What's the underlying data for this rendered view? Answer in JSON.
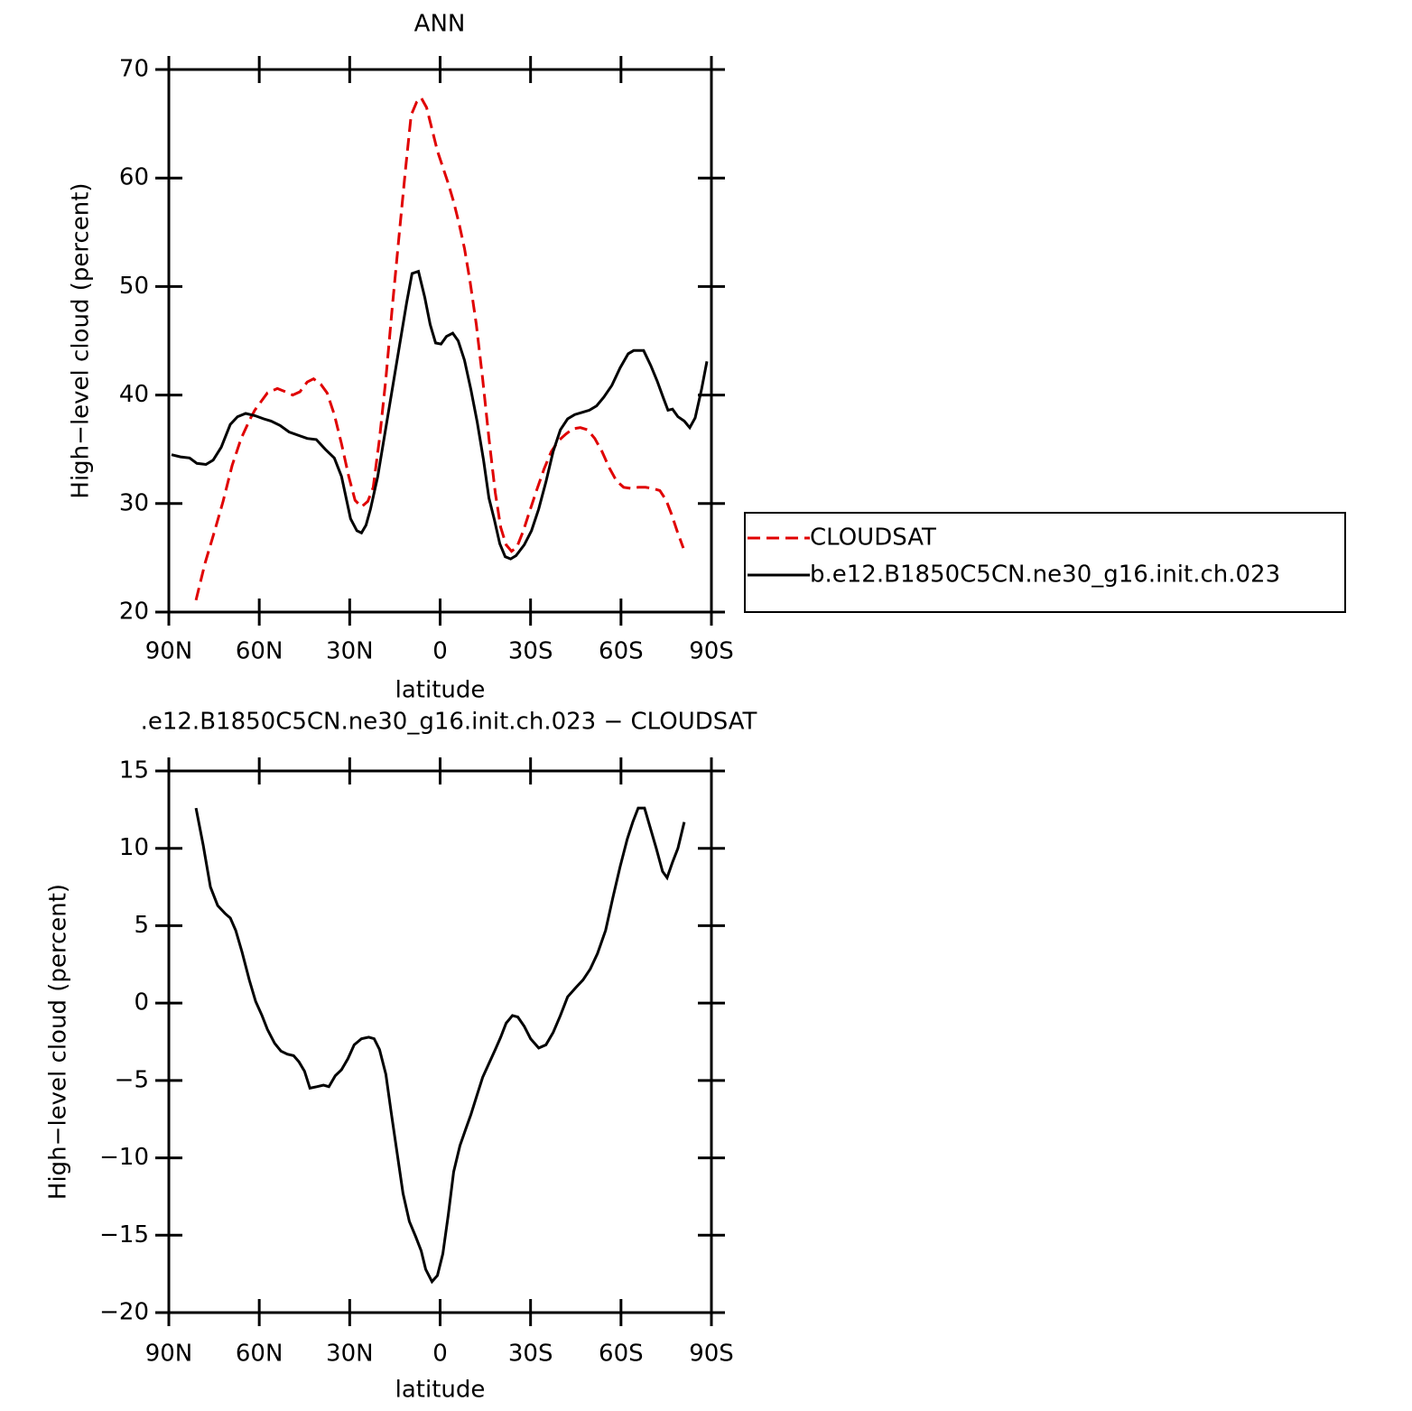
{
  "chart_data": [
    {
      "type": "line",
      "title": "ANN",
      "xlabel": "latitude",
      "ylabel": "High−level cloud (percent)",
      "xlim": [
        90,
        -90
      ],
      "xticks": [
        {
          "value": 90,
          "label": "90N"
        },
        {
          "value": 60,
          "label": "60N"
        },
        {
          "value": 30,
          "label": "30N"
        },
        0,
        {
          "value": -30,
          "label": "30S"
        },
        {
          "value": -60,
          "label": "60S"
        },
        {
          "value": -90,
          "label": "90S"
        }
      ],
      "ylim": [
        20,
        70
      ],
      "yticks": [
        20,
        30,
        40,
        50,
        60,
        70
      ],
      "legend": "right",
      "series": [
        {
          "name": "CLOUDSAT",
          "color": "#e00000",
          "linestyle": "dashed",
          "x": [
            81.0,
            78.0,
            75.0,
            72.0,
            69.0,
            66.0,
            63.0,
            61.5,
            57.3,
            54.0,
            51.3,
            48.9,
            46.5,
            44.1,
            42.0,
            39.6,
            37.5,
            35.1,
            32.7,
            30.3,
            28.2,
            26.1,
            24.0,
            22.2,
            20.1,
            18.0,
            15.9,
            13.5,
            11.4,
            9.6,
            7.8,
            6.3,
            4.5,
            2.7,
            0.9,
            -0.9,
            -2.7,
            -4.5,
            -6.3,
            -8.1,
            -9.9,
            -12.0,
            -14.1,
            -16.2,
            -18.3,
            -20.1,
            -21.9,
            -23.7,
            -25.5,
            -27.6,
            -29.7,
            -32.1,
            -34.5,
            -36.9,
            -39.3,
            -41.7,
            -44.1,
            -46.5,
            -48.9,
            -51.3,
            -53.7,
            -56.1,
            -58.5,
            -60.9,
            -63.3,
            -65.7,
            -68.1,
            -70.5,
            -72.9,
            -75.0,
            -76.8,
            -78.6,
            -80.7
          ],
          "values": [
            21.1,
            24.5,
            27.3,
            30.2,
            33.5,
            36.0,
            37.8,
            38.6,
            40.2,
            40.6,
            40.3,
            40.0,
            40.3,
            41.2,
            41.5,
            41.0,
            40.2,
            38.2,
            35.5,
            32.5,
            30.3,
            29.7,
            30.2,
            31.5,
            36.0,
            41.5,
            48.0,
            55.0,
            61.0,
            65.8,
            67.0,
            67.4,
            66.5,
            64.5,
            62.5,
            61.0,
            59.5,
            57.8,
            55.8,
            53.5,
            50.5,
            46.5,
            41.5,
            36.0,
            31.0,
            27.8,
            26.2,
            25.6,
            26.0,
            27.5,
            29.3,
            31.3,
            33.2,
            34.8,
            35.8,
            36.4,
            36.9,
            37.0,
            36.8,
            36.0,
            34.8,
            33.3,
            32.1,
            31.5,
            31.4,
            31.5,
            31.5,
            31.4,
            31.2,
            30.3,
            29.0,
            27.5,
            25.9
          ]
        },
        {
          "name": "b.e12.B1850C5CN.ne30_g16.init.ch.023",
          "color": "#000000",
          "linestyle": "solid",
          "x": [
            89.1,
            86.1,
            83.1,
            80.7,
            77.7,
            75.3,
            72.6,
            69.6,
            67.2,
            64.5,
            61.5,
            58.5,
            56.1,
            53.1,
            50.1,
            47.1,
            44.1,
            41.1,
            38.1,
            35.1,
            32.7,
            29.7,
            27.6,
            26.1,
            24.6,
            23.1,
            20.7,
            18.3,
            15.9,
            13.5,
            11.1,
            9.3,
            7.2,
            5.1,
            3.3,
            1.5,
            -0.3,
            -2.1,
            -4.2,
            -6.0,
            -8.1,
            -10.2,
            -12.3,
            -14.4,
            -16.2,
            -18.0,
            -19.8,
            -21.6,
            -23.4,
            -25.2,
            -27.9,
            -30.3,
            -32.7,
            -35.1,
            -37.5,
            -39.9,
            -42.3,
            -44.7,
            -47.1,
            -49.5,
            -51.9,
            -54.3,
            -57.0,
            -59.7,
            -62.4,
            -64.2,
            -67.5,
            -69.9,
            -72.0,
            -74.1,
            -75.6,
            -77.1,
            -78.9,
            -81.0,
            -82.8,
            -84.6,
            -86.7,
            -88.5
          ],
          "values": [
            34.5,
            34.3,
            34.2,
            33.7,
            33.6,
            34.0,
            35.2,
            37.3,
            38.0,
            38.3,
            38.1,
            37.8,
            37.6,
            37.2,
            36.6,
            36.3,
            36.0,
            35.9,
            35.0,
            34.2,
            32.5,
            28.6,
            27.5,
            27.3,
            28.0,
            29.5,
            32.5,
            36.5,
            40.5,
            44.5,
            48.5,
            51.2,
            51.4,
            49.0,
            46.5,
            44.8,
            44.7,
            45.4,
            45.7,
            45.0,
            43.2,
            40.5,
            37.5,
            34.0,
            30.5,
            28.5,
            26.3,
            25.1,
            24.9,
            25.2,
            26.2,
            27.5,
            29.5,
            32.0,
            34.8,
            36.8,
            37.8,
            38.2,
            38.4,
            38.6,
            39.0,
            39.8,
            40.9,
            42.5,
            43.8,
            44.1,
            44.1,
            42.7,
            41.3,
            39.7,
            38.6,
            38.7,
            38.0,
            37.6,
            37.0,
            37.9,
            40.5,
            43.1
          ]
        }
      ]
    },
    {
      "type": "line",
      "title": ".e12.B1850C5CN.ne30_g16.init.ch.023 − CLOUDSAT",
      "xlabel": "latitude",
      "ylabel": "High−level cloud (percent)",
      "xlim": [
        90,
        -90
      ],
      "xticks": [
        {
          "value": 90,
          "label": "90N"
        },
        {
          "value": 60,
          "label": "60N"
        },
        {
          "value": 30,
          "label": "30N"
        },
        0,
        {
          "value": -30,
          "label": "30S"
        },
        {
          "value": -60,
          "label": "60S"
        },
        {
          "value": -90,
          "label": "90S"
        }
      ],
      "ylim": [
        -20,
        15
      ],
      "yticks": [
        {
          "value": -20,
          "label": "−20"
        },
        {
          "value": -15,
          "label": "−15"
        },
        {
          "value": -10,
          "label": "−10"
        },
        {
          "value": -5,
          "label": "−5"
        },
        0,
        5,
        10,
        15
      ],
      "series": [
        {
          "color": "#000000",
          "linestyle": "solid",
          "x": [
            81.0,
            78.6,
            76.2,
            73.8,
            71.4,
            69.6,
            67.8,
            65.7,
            63.3,
            61.2,
            59.1,
            57.3,
            54.9,
            52.8,
            50.7,
            48.6,
            46.8,
            45.0,
            43.2,
            40.8,
            38.7,
            36.9,
            34.8,
            32.7,
            30.6,
            28.5,
            26.1,
            23.7,
            21.9,
            20.1,
            18.0,
            16.2,
            14.4,
            12.3,
            10.2,
            8.1,
            6.3,
            4.8,
            2.7,
            0.9,
            -0.9,
            -2.7,
            -4.5,
            -6.6,
            -8.4,
            -10.2,
            -12.3,
            -14.1,
            -16.2,
            -18.3,
            -20.1,
            -21.9,
            -24.0,
            -25.8,
            -27.9,
            -30.0,
            -32.7,
            -35.1,
            -37.5,
            -39.9,
            -42.3,
            -45.0,
            -47.4,
            -49.8,
            -52.2,
            -54.9,
            -57.3,
            -59.7,
            -62.1,
            -63.9,
            -65.7,
            -67.8,
            -69.6,
            -71.7,
            -73.8,
            -75.3,
            -77.1,
            -78.9,
            -81.0
          ],
          "values": [
            12.6,
            10.2,
            7.5,
            6.3,
            5.8,
            5.5,
            4.7,
            3.3,
            1.5,
            0.1,
            -0.8,
            -1.7,
            -2.6,
            -3.1,
            -3.3,
            -3.4,
            -3.8,
            -4.4,
            -5.5,
            -5.4,
            -5.3,
            -5.4,
            -4.7,
            -4.3,
            -3.6,
            -2.7,
            -2.3,
            -2.2,
            -2.3,
            -3.0,
            -4.6,
            -7.1,
            -9.5,
            -12.3,
            -14.1,
            -15.1,
            -16.0,
            -17.2,
            -18.0,
            -17.6,
            -16.2,
            -13.7,
            -10.9,
            -9.2,
            -8.2,
            -7.2,
            -5.9,
            -4.8,
            -3.9,
            -3.0,
            -2.2,
            -1.3,
            -0.8,
            -0.9,
            -1.5,
            -2.3,
            -2.9,
            -2.7,
            -1.9,
            -0.8,
            0.4,
            1.0,
            1.5,
            2.2,
            3.2,
            4.7,
            6.8,
            8.8,
            10.6,
            11.7,
            12.6,
            12.6,
            11.4,
            10.0,
            8.5,
            8.1,
            9.1,
            10.0,
            11.7
          ]
        }
      ]
    }
  ]
}
